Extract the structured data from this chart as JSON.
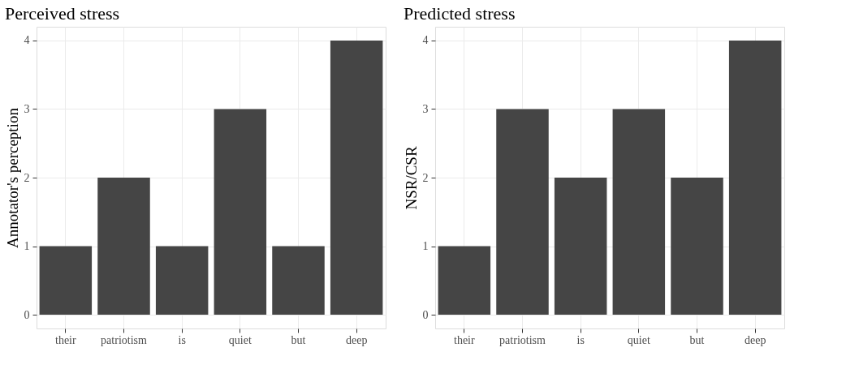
{
  "chart_data": [
    {
      "type": "bar",
      "title": "Perceived stress",
      "ylabel": "Annotator's perception",
      "categories": [
        "their",
        "patriotism",
        "is",
        "quiet",
        "but",
        "deep"
      ],
      "values": [
        1,
        2,
        1,
        3,
        1,
        4
      ],
      "color": "#454545",
      "ylim": [
        -0.2,
        4.2
      ],
      "yticks": [
        0,
        1,
        2,
        3,
        4
      ],
      "grid": true
    },
    {
      "type": "bar",
      "title": "Predicted stress",
      "ylabel": "NSR/CSR",
      "categories": [
        "their",
        "patriotism",
        "is",
        "quiet",
        "but",
        "deep"
      ],
      "values": [
        1,
        3,
        2,
        3,
        2,
        4
      ],
      "color": "#454545",
      "ylim": [
        -0.2,
        4.2
      ],
      "yticks": [
        0,
        1,
        2,
        3,
        4
      ],
      "grid": true
    }
  ]
}
